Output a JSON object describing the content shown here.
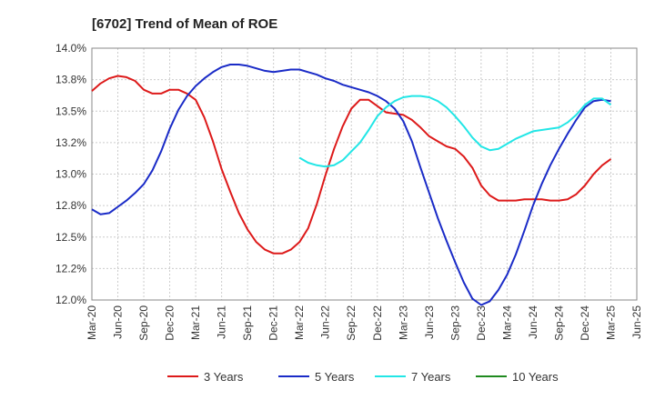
{
  "chart_data": {
    "type": "line",
    "title": "[6702]  Trend of Mean of ROE",
    "xlabel": "",
    "ylabel": "",
    "ylim": [
      12.0,
      14.0
    ],
    "y_ticks": [
      "12.0%",
      "12.2%",
      "12.5%",
      "12.8%",
      "13.0%",
      "13.2%",
      "13.5%",
      "13.8%",
      "14.0%"
    ],
    "y_tick_values": [
      12.0,
      12.25,
      12.5,
      12.75,
      13.0,
      13.25,
      13.5,
      13.75,
      14.0
    ],
    "x_ticks": [
      "Mar-20",
      "Jun-20",
      "Sep-20",
      "Dec-20",
      "Mar-21",
      "Jun-21",
      "Sep-21",
      "Dec-21",
      "Mar-22",
      "Jun-22",
      "Sep-22",
      "Dec-22",
      "Mar-23",
      "Jun-23",
      "Sep-23",
      "Dec-23",
      "Mar-24",
      "Jun-24",
      "Sep-24",
      "Dec-24",
      "Mar-25",
      "Jun-25"
    ],
    "x_range_months": [
      0,
      63
    ],
    "grid": true,
    "legend_position": "bottom",
    "series": [
      {
        "name": "3 Years",
        "color": "#dd1a1a",
        "x": [
          0,
          1,
          2,
          3,
          4,
          5,
          6,
          7,
          8,
          9,
          10,
          11,
          12,
          13,
          14,
          15,
          16,
          17,
          18,
          19,
          20,
          21,
          22,
          23,
          24,
          25,
          26,
          27,
          28,
          29,
          30,
          31,
          32,
          33,
          34,
          35,
          36,
          37,
          38,
          39,
          40,
          41,
          42,
          43,
          44,
          45,
          46,
          47,
          48,
          49,
          50,
          51,
          52,
          53,
          54,
          55,
          56,
          57,
          58,
          59,
          60
        ],
        "values": [
          13.66,
          13.72,
          13.76,
          13.78,
          13.77,
          13.74,
          13.67,
          13.64,
          13.64,
          13.67,
          13.67,
          13.64,
          13.59,
          13.45,
          13.26,
          13.04,
          12.86,
          12.69,
          12.56,
          12.46,
          12.4,
          12.37,
          12.37,
          12.4,
          12.46,
          12.57,
          12.76,
          12.99,
          13.2,
          13.38,
          13.52,
          13.59,
          13.59,
          13.54,
          13.49,
          13.48,
          13.47,
          13.43,
          13.37,
          13.3,
          13.26,
          13.22,
          13.2,
          13.14,
          13.05,
          12.91,
          12.83,
          12.79,
          12.79,
          12.79,
          12.8,
          12.8,
          12.8,
          12.79,
          12.79,
          12.8,
          12.84,
          12.91,
          13.0,
          13.07,
          13.12
        ]
      },
      {
        "name": "5 Years",
        "color": "#1a2bc7",
        "x": [
          0,
          1,
          2,
          3,
          4,
          5,
          6,
          7,
          8,
          9,
          10,
          11,
          12,
          13,
          14,
          15,
          16,
          17,
          18,
          19,
          20,
          21,
          22,
          23,
          24,
          25,
          26,
          27,
          28,
          29,
          30,
          31,
          32,
          33,
          34,
          35,
          36,
          37,
          38,
          39,
          40,
          41,
          42,
          43,
          44,
          45,
          46,
          47,
          48,
          49,
          50,
          51,
          52,
          53,
          54,
          55,
          56,
          57,
          58,
          59,
          60
        ],
        "values": [
          12.72,
          12.68,
          12.69,
          12.74,
          12.79,
          12.85,
          12.92,
          13.03,
          13.18,
          13.36,
          13.51,
          13.62,
          13.7,
          13.76,
          13.81,
          13.85,
          13.87,
          13.87,
          13.86,
          13.84,
          13.82,
          13.81,
          13.82,
          13.83,
          13.83,
          13.81,
          13.79,
          13.76,
          13.74,
          13.71,
          13.69,
          13.67,
          13.65,
          13.62,
          13.58,
          13.52,
          13.42,
          13.26,
          13.05,
          12.85,
          12.65,
          12.47,
          12.3,
          12.14,
          12.01,
          11.96,
          11.99,
          12.08,
          12.2,
          12.36,
          12.55,
          12.75,
          12.92,
          13.07,
          13.2,
          13.32,
          13.43,
          13.53,
          13.58,
          13.59,
          13.58
        ]
      },
      {
        "name": "7 Years",
        "color": "#22e6e6",
        "x": [
          24,
          25,
          26,
          27,
          28,
          29,
          30,
          31,
          32,
          33,
          34,
          35,
          36,
          37,
          38,
          39,
          40,
          41,
          42,
          43,
          44,
          45,
          46,
          47,
          48,
          49,
          50,
          51,
          52,
          53,
          54,
          55,
          56,
          57,
          58,
          59,
          60
        ],
        "values": [
          13.13,
          13.09,
          13.07,
          13.06,
          13.07,
          13.11,
          13.18,
          13.25,
          13.35,
          13.46,
          13.53,
          13.58,
          13.61,
          13.62,
          13.62,
          13.61,
          13.58,
          13.53,
          13.46,
          13.38,
          13.29,
          13.22,
          13.19,
          13.2,
          13.24,
          13.28,
          13.31,
          13.34,
          13.35,
          13.36,
          13.37,
          13.41,
          13.47,
          13.55,
          13.6,
          13.6,
          13.55
        ]
      },
      {
        "name": "10 Years",
        "color": "#1f8a1f",
        "x": [],
        "values": []
      }
    ]
  }
}
